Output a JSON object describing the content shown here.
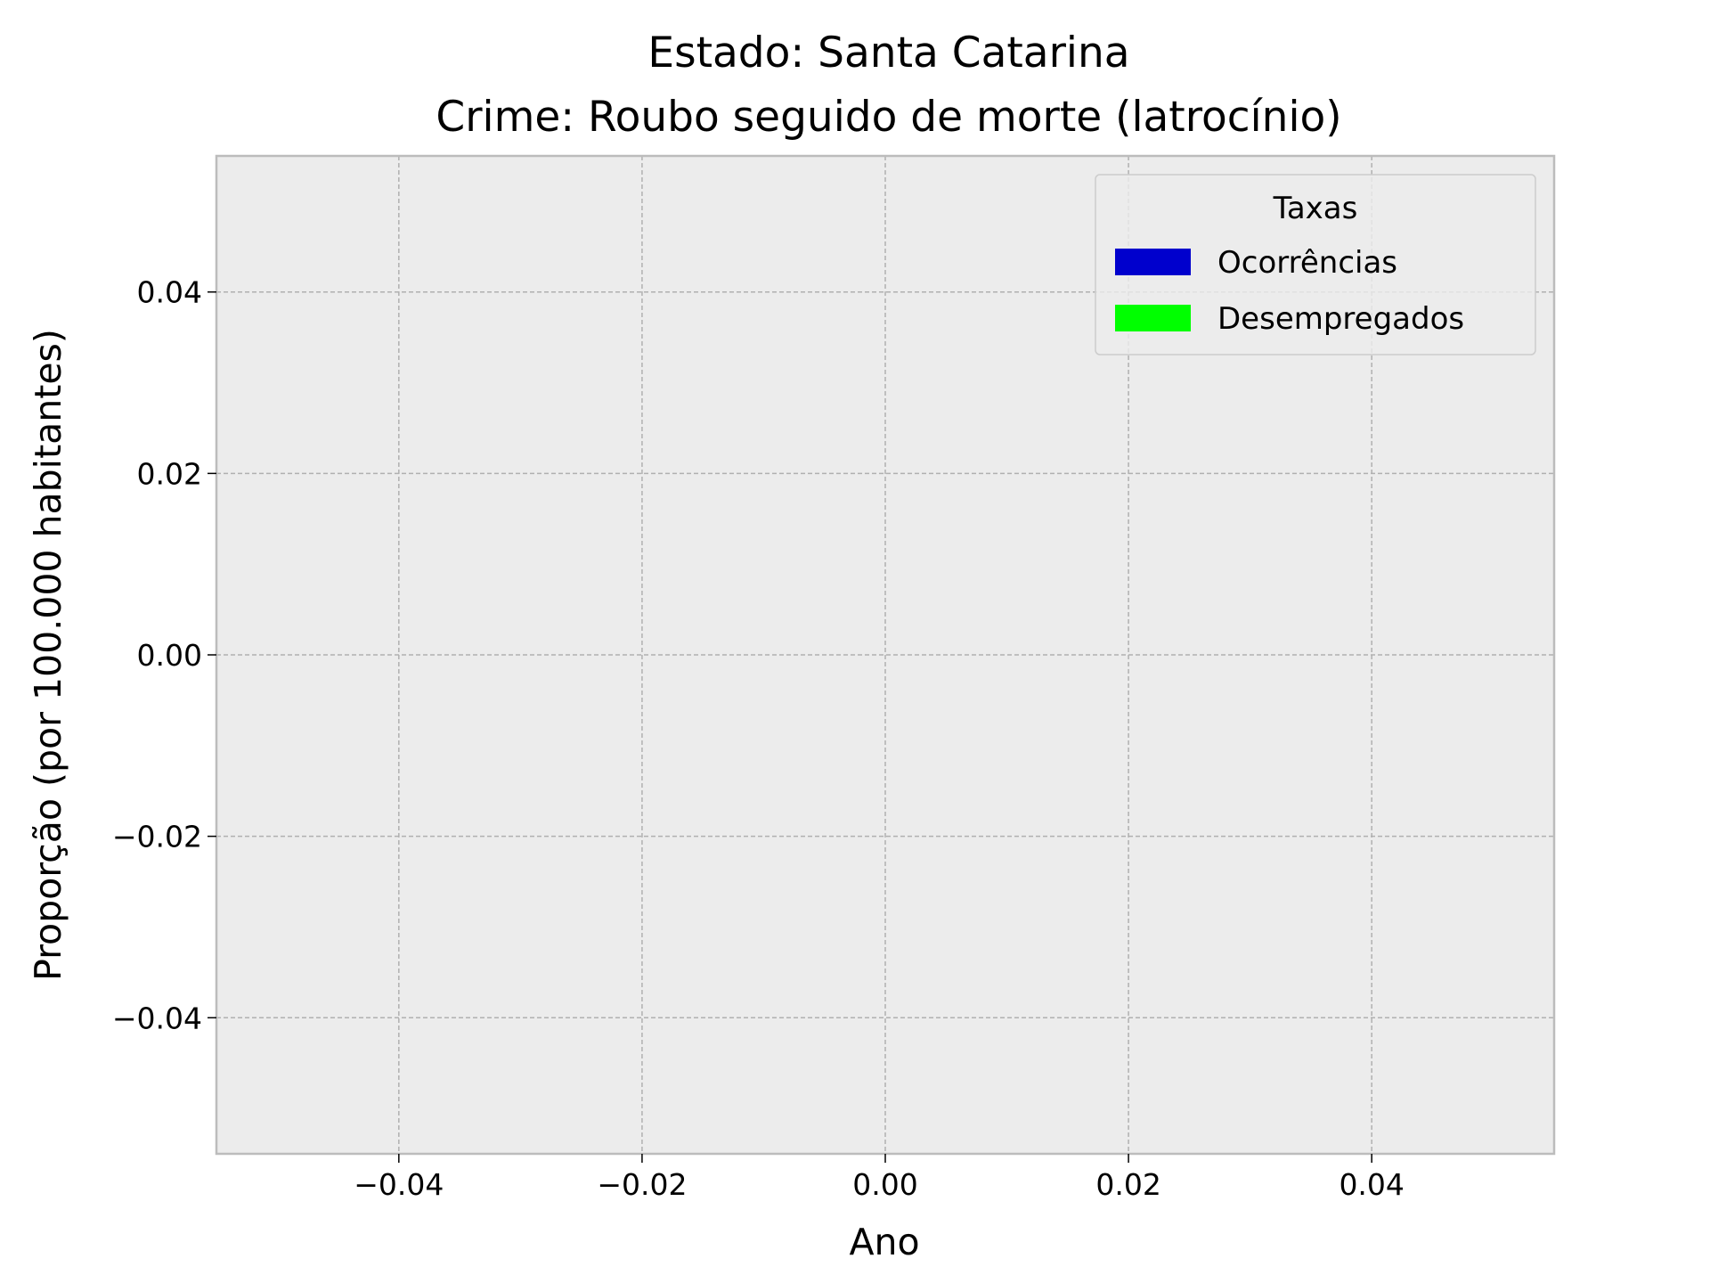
{
  "chart_data": {
    "type": "bar",
    "title": [
      "Estado: Santa Catarina",
      "Crime: Roubo seguido de morte (latrocínio)"
    ],
    "xlabel": "Ano",
    "ylabel": "Proporção (por 100.000 habitantes)",
    "xlim": [
      -0.055,
      0.055
    ],
    "ylim": [
      -0.055,
      0.055
    ],
    "xticks": [
      -0.04,
      -0.02,
      0.0,
      0.02,
      0.04
    ],
    "yticks": [
      -0.04,
      -0.02,
      0.0,
      0.02,
      0.04
    ],
    "xtick_labels": [
      "−0.04",
      "−0.02",
      "0.00",
      "0.02",
      "0.04"
    ],
    "ytick_labels": [
      "−0.04",
      "−0.02",
      "0.00",
      "0.02",
      "0.04"
    ],
    "grid": true,
    "categories": [],
    "series": [
      {
        "name": "Ocorrências",
        "color": "#0000cd",
        "values": []
      },
      {
        "name": "Desempregados",
        "color": "#00ff00",
        "values": []
      }
    ],
    "legend": {
      "title": "Taxas",
      "placement": "top-right",
      "entries": [
        "Ocorrências",
        "Desempregados"
      ]
    },
    "colors": {
      "plot_background": "#ececec",
      "axes_edge": "#bcbcbc",
      "grid": "#b0b0b0"
    }
  }
}
